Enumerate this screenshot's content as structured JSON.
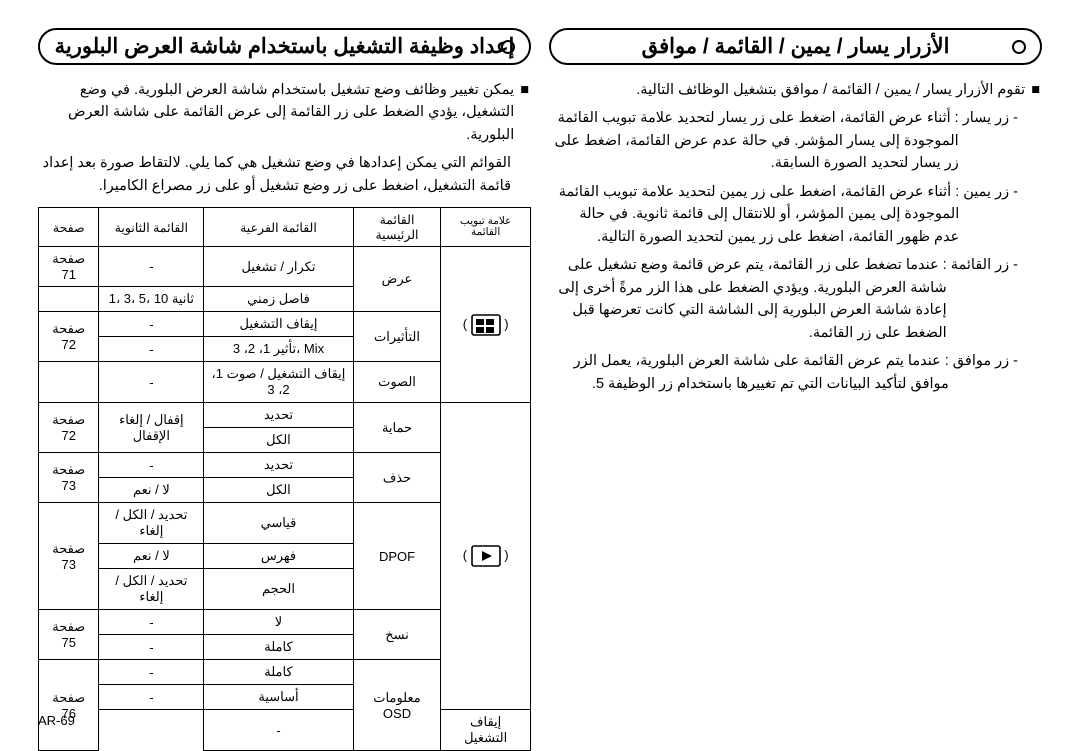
{
  "page_number": "AR-69",
  "right_col": {
    "heading": "الأزرار يسار / يمين / القائمة / موافق",
    "lead_bullet": "تقوم الأزرار يسار / يمين / القائمة / موافق بتشغيل الوظائف التالية.",
    "items": [
      {
        "label": "- زر يسار",
        "text": ": أثناء عرض القائمة، اضغط على زر يسار لتحديد علامة تبويب القائمة الموجودة إلى يسار المؤشر. في حالة عدم عرض القائمة، اضغط على زر يسار لتحديد الصورة السابقة."
      },
      {
        "label": "- زر يمين",
        "text": ": أثناء عرض القائمة، اضغط على زر يمين لتحديد علامة تبويب القائمة الموجودة إلى يمين المؤشر، أو للانتقال إلى قائمة ثانوية. في حالة عدم ظهور القائمة، اضغط على زر يمين لتحديد الصورة التالية."
      },
      {
        "label": "- زر القائمة",
        "text": ": عندما تضغط على زر القائمة، يتم عرض قائمة وضع تشغيل على شاشة العرض البلورية. ويؤدي الضغط على هذا الزر مرةً أخرى إلى إعادة شاشة العرض البلورية إلى الشاشة التي كانت تعرضها قبل الضغط على زر القائمة."
      },
      {
        "label": "- زر موافق",
        "text": ": عندما يتم عرض القائمة على شاشة العرض البلورية، يعمل الزر موافق لتأكيد البيانات التي تم تغييرها باستخدام زر الوظيفة 5."
      }
    ]
  },
  "left_col": {
    "heading": "إعداد وظيفة التشغيل باستخدام شاشة العرض البلورية",
    "para1": "يمكن تغيير وظائف وضع تشغيل باستخدام شاشة العرض البلورية. في وضع التشغيل، يؤدي الضغط على زر القائمة إلى عرض القائمة على شاشة العرض البلورية.",
    "para2": "القوائم التي يمكن إعدادها في وضع تشغيل هي كما يلي. لالتقاط صورة بعد إعداد قائمة التشغيل، اضغط على زر وضع تشغيل أو على زر مصراع الكاميرا.",
    "table": {
      "columns": [
        "علامة تبويب القائمة",
        "القائمة الرئيسية",
        "القائمة الفرعية",
        "القائمة الثانوية",
        "صفحة"
      ],
      "tabs": [
        {
          "icon": "display",
          "rowspan": 5
        },
        {
          "icon": "play",
          "rowspan": 11
        }
      ],
      "rows": [
        {
          "main": "عرض",
          "sub": "تكرار / تشغيل",
          "sec": "-",
          "page": "صفحة 71",
          "main_rowspan": 2,
          "page_rowspan": 1
        },
        {
          "sub": "فاصل زمني",
          "sec": "1، 3، 5، 10 ثانية",
          "sec_dir": "ltr",
          "page": ""
        },
        {
          "main": "التأثيرات",
          "sub": "إيقاف التشغيل",
          "sec": "-",
          "page": "صفحة 72",
          "main_rowspan": 2,
          "page_rowspan": 2
        },
        {
          "sub": "تأثير 1، 2، 3، Mix",
          "sub_dir": "ltr",
          "sec": "-"
        },
        {
          "main": "الصوت",
          "sub": "إيقاف التشغيل / صوت 1، 2، 3",
          "sub_dir": "ltr",
          "sec": "-",
          "page": "",
          "main_rowspan": 1
        },
        {
          "main": "حماية",
          "sub": "تحديد",
          "sec": "إقفال / إلغاء الإقفال",
          "sec_rowspan": 2,
          "page": "صفحة 72",
          "main_rowspan": 2,
          "page_rowspan": 2
        },
        {
          "sub": "الكل"
        },
        {
          "main": "حذف",
          "sub": "تحديد",
          "sec": "-",
          "page": "صفحة 73",
          "main_rowspan": 2,
          "page_rowspan": 2
        },
        {
          "sub": "الكل",
          "sec": "لا / نعم"
        },
        {
          "main": "DPOF",
          "sub": "قياسي",
          "sec": "تحديد / الكل / إلغاء",
          "page": "صفحة 73",
          "main_rowspan": 3,
          "page_rowspan": 3
        },
        {
          "sub": "فهرس",
          "sec": "لا / نعم"
        },
        {
          "sub": "الحجم",
          "sec": "تحديد / الكل / إلغاء"
        },
        {
          "main": "نسخ",
          "sub": "لا",
          "sec": "-",
          "page": "صفحة 75",
          "main_rowspan": 2,
          "page_rowspan": 2
        },
        {
          "sub": "كاملة",
          "sec": "-"
        },
        {
          "main": "معلومات OSD",
          "sub": "كاملة",
          "sec": "-",
          "page": "صفحة 76",
          "main_rowspan": 3,
          "page_rowspan": 3
        },
        {
          "sub": "أساسية",
          "sec": "-"
        },
        {
          "sub": "إيقاف التشغيل",
          "sec": "-"
        }
      ]
    }
  },
  "style": {
    "bg": "#ffffff",
    "fg": "#000000",
    "heading_fontsize": 21,
    "body_fontsize": 14.5,
    "table_fontsize": 13,
    "border_color": "#000000"
  }
}
